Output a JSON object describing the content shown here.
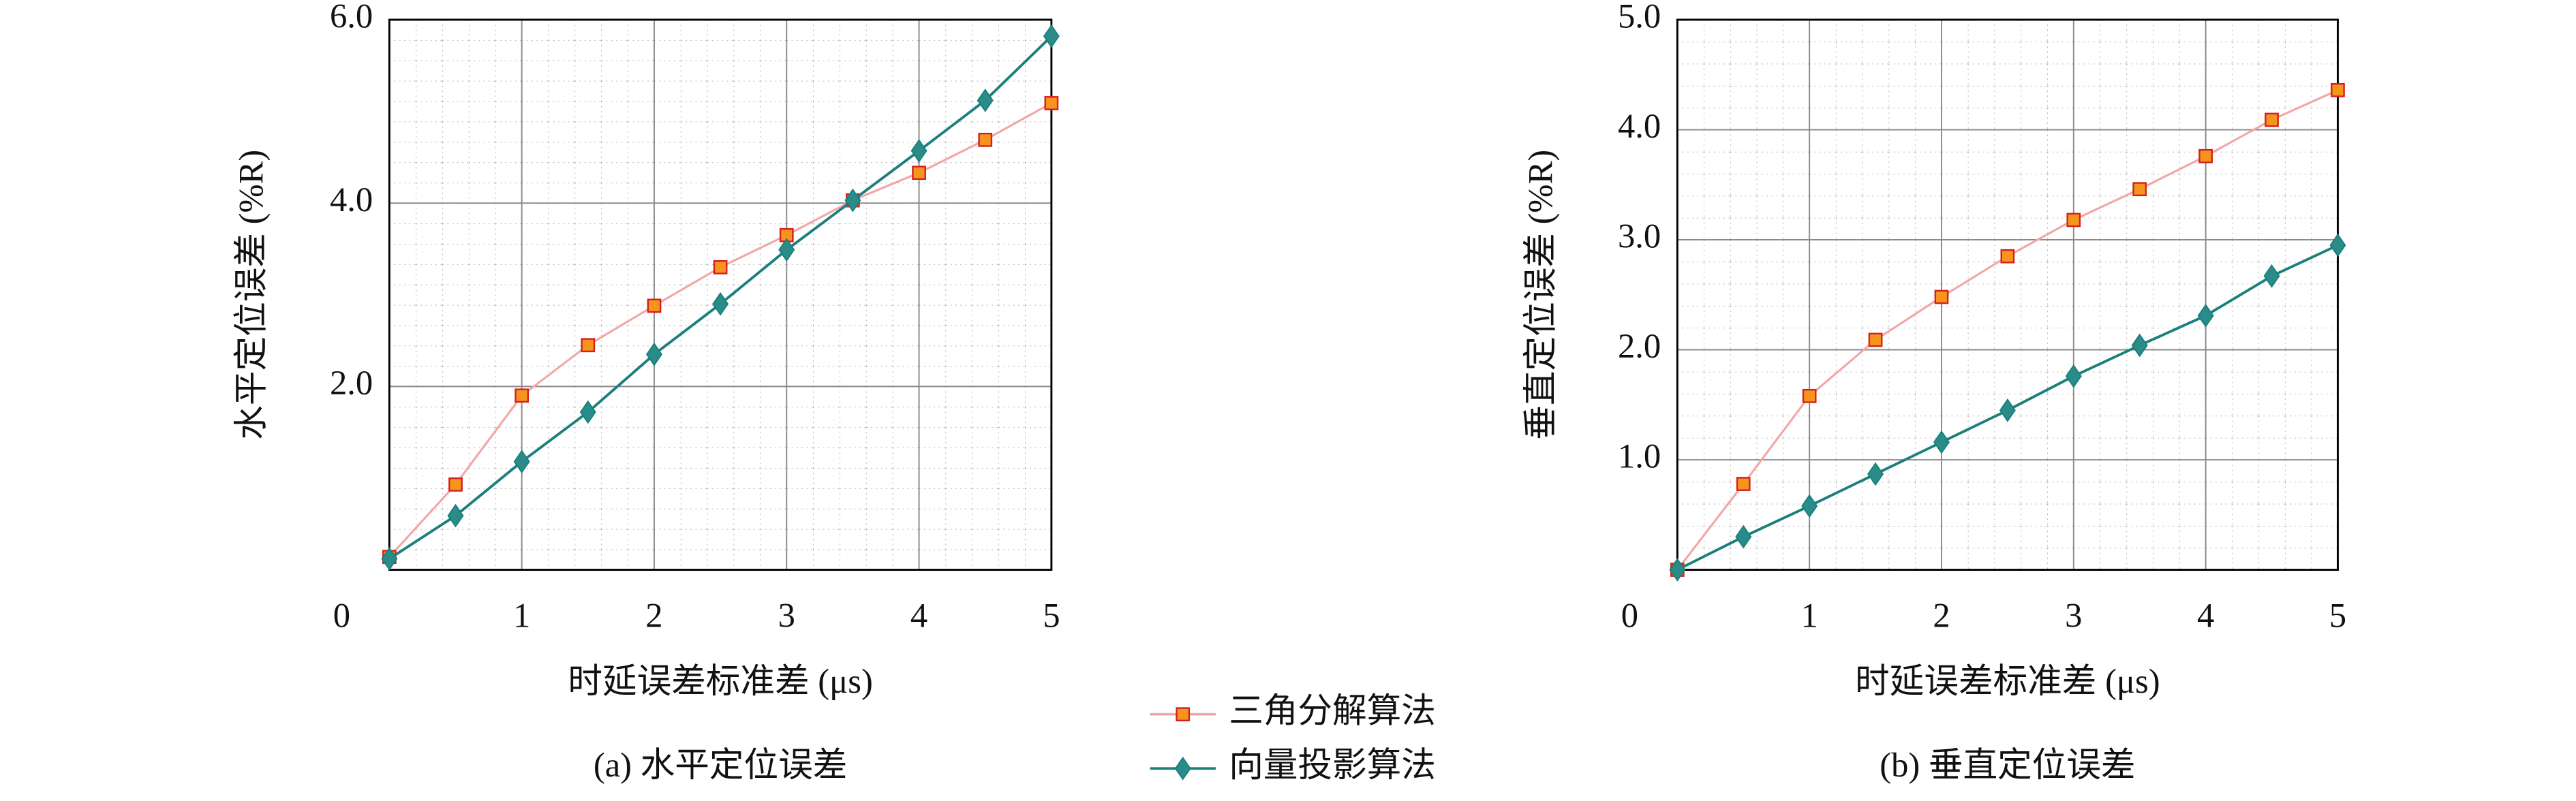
{
  "chart_data": [
    {
      "type": "line",
      "caption": "(a) 水平定位误差",
      "xlabel": "时延误差标准差 (μs)",
      "ylabel": "水平定位误差 (%R)",
      "x": [
        0,
        0.5,
        1,
        1.5,
        2,
        2.5,
        3,
        3.5,
        4,
        4.5,
        5
      ],
      "xlim": [
        0,
        5
      ],
      "xticks": [
        0,
        1,
        2,
        3,
        4,
        5
      ],
      "ylim": [
        0,
        6
      ],
      "yticks": [
        {
          "value": 2,
          "label": "2.0"
        },
        {
          "value": 4,
          "label": "4.0"
        },
        {
          "value": 6,
          "label": "6.0"
        }
      ],
      "grid": true,
      "minor_grid": true,
      "series": [
        {
          "name": "三角分解算法",
          "color": "#f2a7a7",
          "marker": "square",
          "marker_color": "#f7941d",
          "values": [
            0.14,
            0.93,
            1.9,
            2.45,
            2.88,
            3.3,
            3.65,
            4.03,
            4.33,
            4.69,
            5.09
          ]
        },
        {
          "name": "向量投影算法",
          "color": "#1b7f7c",
          "marker": "diamond",
          "marker_color": "#2a8c89",
          "values": [
            0.12,
            0.59,
            1.18,
            1.72,
            2.35,
            2.9,
            3.49,
            4.03,
            4.57,
            5.12,
            5.82
          ]
        }
      ]
    },
    {
      "type": "line",
      "caption": "(b) 垂直定位误差",
      "xlabel": "时延误差标准差 (μs)",
      "ylabel": "垂直定位误差 (%R)",
      "x": [
        0,
        0.5,
        1,
        1.5,
        2,
        2.5,
        3,
        3.5,
        4,
        4.5,
        5
      ],
      "xlim": [
        0,
        5
      ],
      "xticks": [
        0,
        1,
        2,
        3,
        4,
        5
      ],
      "ylim": [
        0,
        5
      ],
      "yticks": [
        {
          "value": 1,
          "label": "1.0"
        },
        {
          "value": 2,
          "label": "2.0"
        },
        {
          "value": 3,
          "label": "3.0"
        },
        {
          "value": 4,
          "label": "4.0"
        },
        {
          "value": 5,
          "label": "5.0"
        }
      ],
      "grid": true,
      "minor_grid": true,
      "series": [
        {
          "color": "#f2a7a7",
          "marker": "square",
          "marker_color": "#f7941d",
          "values": [
            0,
            0.78,
            1.58,
            2.09,
            2.48,
            2.85,
            3.18,
            3.46,
            3.76,
            4.09,
            4.36
          ]
        },
        {
          "color": "#1b7f7c",
          "marker": "diamond",
          "marker_color": "#2a8c89",
          "values": [
            0,
            0.3,
            0.58,
            0.87,
            1.16,
            1.45,
            1.76,
            2.04,
            2.31,
            2.67,
            2.95
          ]
        }
      ]
    }
  ]
}
